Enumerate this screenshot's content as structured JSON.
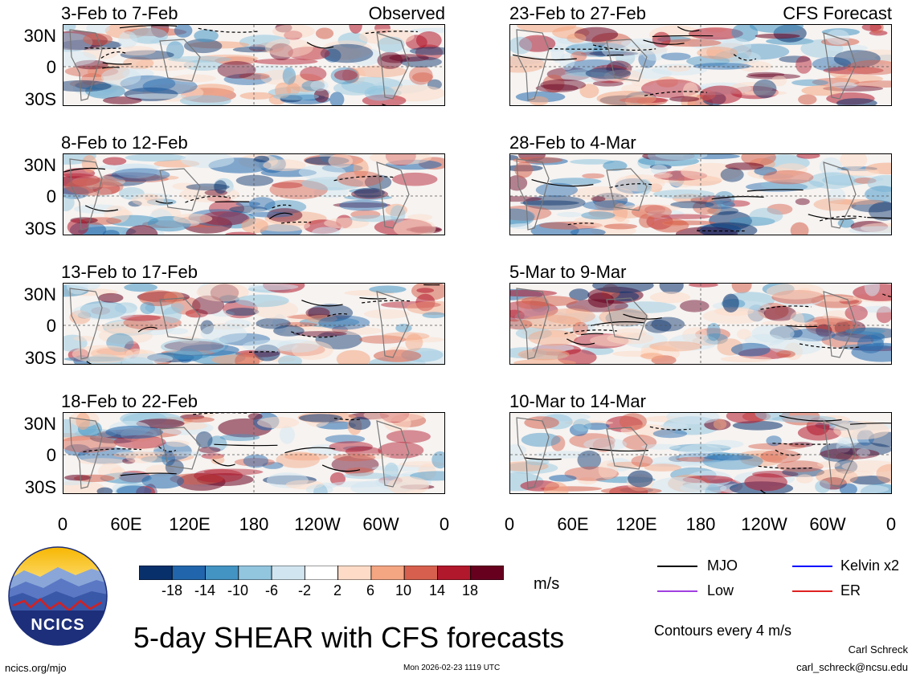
{
  "chart_data": {
    "type": "heatmap",
    "title": "5-day SHEAR with CFS forecasts",
    "variable": "SHEAR",
    "units": "m/s",
    "contour_note": "Contours every 4 m/s",
    "x_tick_labels": [
      "0",
      "60E",
      "120E",
      "180",
      "120W",
      "60W",
      "0"
    ],
    "y_tick_labels": [
      "30N",
      "0",
      "30S"
    ],
    "colorbar": {
      "ticks": [
        "-18",
        "-14",
        "-10",
        "-6",
        "-2",
        "2",
        "6",
        "10",
        "14",
        "18"
      ],
      "colors": [
        "#08306b",
        "#2166ac",
        "#4393c3",
        "#92c5de",
        "#d1e5f0",
        "#ffffff",
        "#fddbc7",
        "#f4a582",
        "#d6604d",
        "#b2182b",
        "#67001f"
      ]
    },
    "legend": [
      {
        "label": "MJO",
        "color": "#000000"
      },
      {
        "label": "Kelvin x2",
        "color": "#0000ff"
      },
      {
        "label": "Low",
        "color": "#a040e0"
      },
      {
        "label": "ER",
        "color": "#e02020"
      }
    ],
    "panels": [
      {
        "period": "3-Feb to 7-Feb",
        "tag": "Observed"
      },
      {
        "period": "8-Feb to 12-Feb",
        "tag": ""
      },
      {
        "period": "13-Feb to 17-Feb",
        "tag": ""
      },
      {
        "period": "18-Feb to 22-Feb",
        "tag": ""
      },
      {
        "period": "23-Feb to 27-Feb",
        "tag": "CFS Forecast"
      },
      {
        "period": "28-Feb to 4-Mar",
        "tag": ""
      },
      {
        "period": "5-Mar to 9-Mar",
        "tag": ""
      },
      {
        "period": "10-Mar to 14-Mar",
        "tag": ""
      }
    ]
  },
  "logo": {
    "text": "NCICS"
  },
  "footer": {
    "site": "ncics.org/mjo",
    "timestamp": "Mon 2026-02-23 1119 UTC",
    "author": "Carl Schreck",
    "email": "carl_schreck@ncsu.edu"
  }
}
